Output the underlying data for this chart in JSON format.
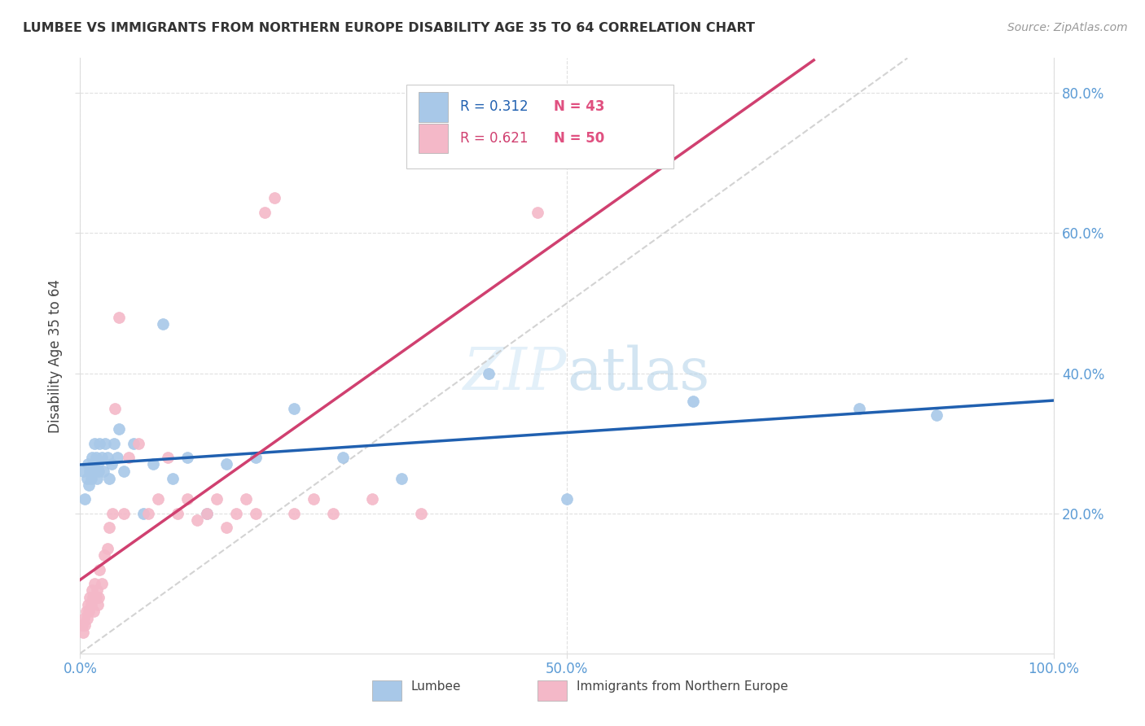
{
  "title": "LUMBEE VS IMMIGRANTS FROM NORTHERN EUROPE DISABILITY AGE 35 TO 64 CORRELATION CHART",
  "source": "Source: ZipAtlas.com",
  "ylabel": "Disability Age 35 to 64",
  "xlim": [
    0,
    1.0
  ],
  "ylim": [
    0,
    0.85
  ],
  "lumbee_color": "#a8c8e8",
  "immigrants_color": "#f4b8c8",
  "lumbee_line_color": "#2060b0",
  "immigrants_line_color": "#d04070",
  "ref_line_color": "#c8c8c8",
  "grid_color": "#e0e0e0",
  "tick_color": "#5b9bd5",
  "R_lumbee": 0.312,
  "N_lumbee": 43,
  "R_immigrants": 0.621,
  "N_immigrants": 50,
  "lumbee_x": [
    0.003,
    0.005,
    0.007,
    0.008,
    0.009,
    0.01,
    0.011,
    0.012,
    0.013,
    0.014,
    0.015,
    0.016,
    0.017,
    0.018,
    0.019,
    0.02,
    0.022,
    0.024,
    0.026,
    0.028,
    0.03,
    0.032,
    0.035,
    0.038,
    0.04,
    0.045,
    0.055,
    0.065,
    0.075,
    0.085,
    0.095,
    0.11,
    0.13,
    0.15,
    0.18,
    0.22,
    0.27,
    0.33,
    0.42,
    0.5,
    0.63,
    0.8,
    0.88
  ],
  "lumbee_y": [
    0.26,
    0.22,
    0.25,
    0.27,
    0.24,
    0.26,
    0.25,
    0.28,
    0.26,
    0.27,
    0.3,
    0.28,
    0.25,
    0.27,
    0.26,
    0.3,
    0.28,
    0.26,
    0.3,
    0.28,
    0.25,
    0.27,
    0.3,
    0.28,
    0.32,
    0.26,
    0.3,
    0.2,
    0.27,
    0.47,
    0.25,
    0.28,
    0.2,
    0.27,
    0.28,
    0.35,
    0.28,
    0.25,
    0.4,
    0.22,
    0.36,
    0.35,
    0.34
  ],
  "immigrants_x": [
    0.002,
    0.003,
    0.004,
    0.005,
    0.006,
    0.007,
    0.008,
    0.009,
    0.01,
    0.011,
    0.012,
    0.013,
    0.014,
    0.015,
    0.016,
    0.017,
    0.018,
    0.019,
    0.02,
    0.022,
    0.025,
    0.028,
    0.03,
    0.033,
    0.036,
    0.04,
    0.045,
    0.05,
    0.06,
    0.07,
    0.08,
    0.09,
    0.1,
    0.11,
    0.12,
    0.13,
    0.14,
    0.15,
    0.16,
    0.17,
    0.18,
    0.19,
    0.2,
    0.22,
    0.24,
    0.26,
    0.3,
    0.35,
    0.41,
    0.47
  ],
  "immigrants_y": [
    0.04,
    0.03,
    0.05,
    0.04,
    0.06,
    0.05,
    0.07,
    0.06,
    0.08,
    0.07,
    0.09,
    0.08,
    0.06,
    0.1,
    0.08,
    0.09,
    0.07,
    0.08,
    0.12,
    0.1,
    0.14,
    0.15,
    0.18,
    0.2,
    0.35,
    0.48,
    0.2,
    0.28,
    0.3,
    0.2,
    0.22,
    0.28,
    0.2,
    0.22,
    0.19,
    0.2,
    0.22,
    0.18,
    0.2,
    0.22,
    0.2,
    0.63,
    0.65,
    0.2,
    0.22,
    0.2,
    0.22,
    0.2,
    0.72,
    0.63
  ]
}
